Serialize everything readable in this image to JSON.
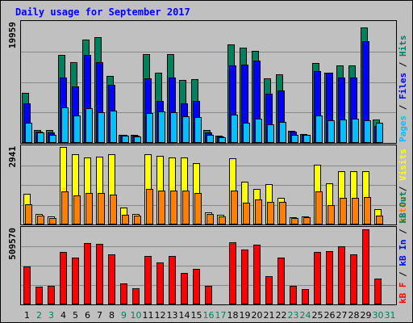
{
  "chart_data": {
    "type": "bar",
    "title": "Daily usage for September 2017",
    "categories": [
      "1",
      "2",
      "3",
      "4",
      "5",
      "6",
      "7",
      "8",
      "9",
      "10",
      "11",
      "12",
      "13",
      "14",
      "15",
      "16",
      "17",
      "18",
      "19",
      "20",
      "21",
      "22",
      "23",
      "24",
      "25",
      "26",
      "27",
      "28",
      "29",
      "30",
      "31"
    ],
    "weekend_days": [
      "2",
      "3",
      "9",
      "10",
      "16",
      "17",
      "23",
      "24",
      "30",
      "31"
    ],
    "panels": [
      {
        "id": "hits-files-pages",
        "max_label": "19959",
        "ymax": 19959,
        "series": [
          {
            "name": "Hits",
            "color": "#00805c",
            "values": [
              8300,
              2200,
              2100,
              14600,
              13400,
              17200,
              17600,
              11100,
              1400,
              1300,
              14700,
              11700,
              14700,
              10400,
              10600,
              2100,
              1200,
              16400,
              15800,
              15300,
              10700,
              11400,
              2000,
              1500,
              13300,
              11600,
              12900,
              12900,
              19100,
              3900,
              0
            ]
          },
          {
            "name": "Files",
            "color": "#0000ff",
            "values": [
              6600,
              1900,
              1700,
              10800,
              9400,
              14600,
              13400,
              9700,
              1300,
              1200,
              10700,
              7000,
              10900,
              6500,
              6900,
              1700,
              1100,
              12900,
              13000,
              13700,
              8200,
              8700,
              1900,
              1400,
              11900,
              11600,
              10900,
              10900,
              16900,
              2800,
              0
            ]
          },
          {
            "name": "Pages",
            "color": "#00c0ff",
            "values": [
              3300,
              1700,
              1300,
              5900,
              4600,
              5800,
              5100,
              5300,
              1200,
              1100,
              5000,
              5200,
              5100,
              4400,
              4300,
              1400,
              1000,
              4700,
              3300,
              4000,
              3100,
              3500,
              1400,
              1300,
              4600,
              3700,
              3900,
              4000,
              3800,
              3400,
              0
            ]
          }
        ],
        "label_parts": [
          {
            "text": "Pages",
            "color": "#00c0ff"
          },
          {
            "text": " / ",
            "color": "#000000"
          },
          {
            "text": "Files",
            "color": "#0000ff"
          },
          {
            "text": " / ",
            "color": "#000000"
          },
          {
            "text": "Hits",
            "color": "#00805c"
          }
        ]
      },
      {
        "id": "visits-sites",
        "max_label": "2941",
        "ymax": 2941,
        "series": [
          {
            "name": "Visits",
            "color": "#ffff00",
            "values": [
              1150,
              400,
              300,
              2930,
              2660,
              2530,
              2560,
              2660,
              650,
              410,
              2650,
              2600,
              2530,
              2550,
              2320,
              450,
              360,
              2520,
              1630,
              1350,
              1530,
              1000,
              280,
              320,
              2270,
              1560,
              2030,
              2020,
              2030,
              570,
              0
            ]
          },
          {
            "name": "Sites",
            "color": "#ff8000",
            "values": [
              780,
              350,
              230,
              1250,
              1100,
              1180,
              1180,
              1140,
              380,
              340,
              1360,
              1300,
              1300,
              1280,
              1190,
              400,
              300,
              1280,
              830,
              940,
              870,
              850,
              250,
              280,
              1270,
              750,
              1010,
              1010,
              1040,
              340,
              0
            ]
          }
        ],
        "label_parts": [
          {
            "text": "Sites",
            "color": "#ff8000"
          },
          {
            "text": " / ",
            "color": "#000000"
          },
          {
            "text": "Visits",
            "color": "#ffff00"
          }
        ]
      },
      {
        "id": "kbytes",
        "max_label": "509570",
        "ymax": 509570,
        "series": [
          {
            "name": "kB F",
            "color": "#ff0000",
            "values": [
              255000,
              119000,
              127000,
              351000,
              315000,
              413000,
              405000,
              334000,
              141000,
              111000,
              325000,
              281000,
              325000,
              213000,
              236000,
              127000,
              0,
              418000,
              368000,
              400000,
              189000,
              316000,
              124000,
              101000,
              353000,
              359000,
              391000,
              334000,
              505000,
              173000,
              0
            ]
          }
        ],
        "label_parts": [
          {
            "text": "kB F",
            "color": "#ff0000"
          },
          {
            "text": " / ",
            "color": "#000000"
          },
          {
            "text": "kB In",
            "color": "#0000ff"
          },
          {
            "text": " / ",
            "color": "#000000"
          },
          {
            "text": "kB Out",
            "color": "#00805c"
          }
        ]
      }
    ],
    "colors": {
      "background": "#c0c0c0",
      "frame": "#000000",
      "grid": "#888888",
      "title": "#0000ff",
      "weekday_label": "#000000",
      "weekend_label": "#00805c"
    }
  }
}
